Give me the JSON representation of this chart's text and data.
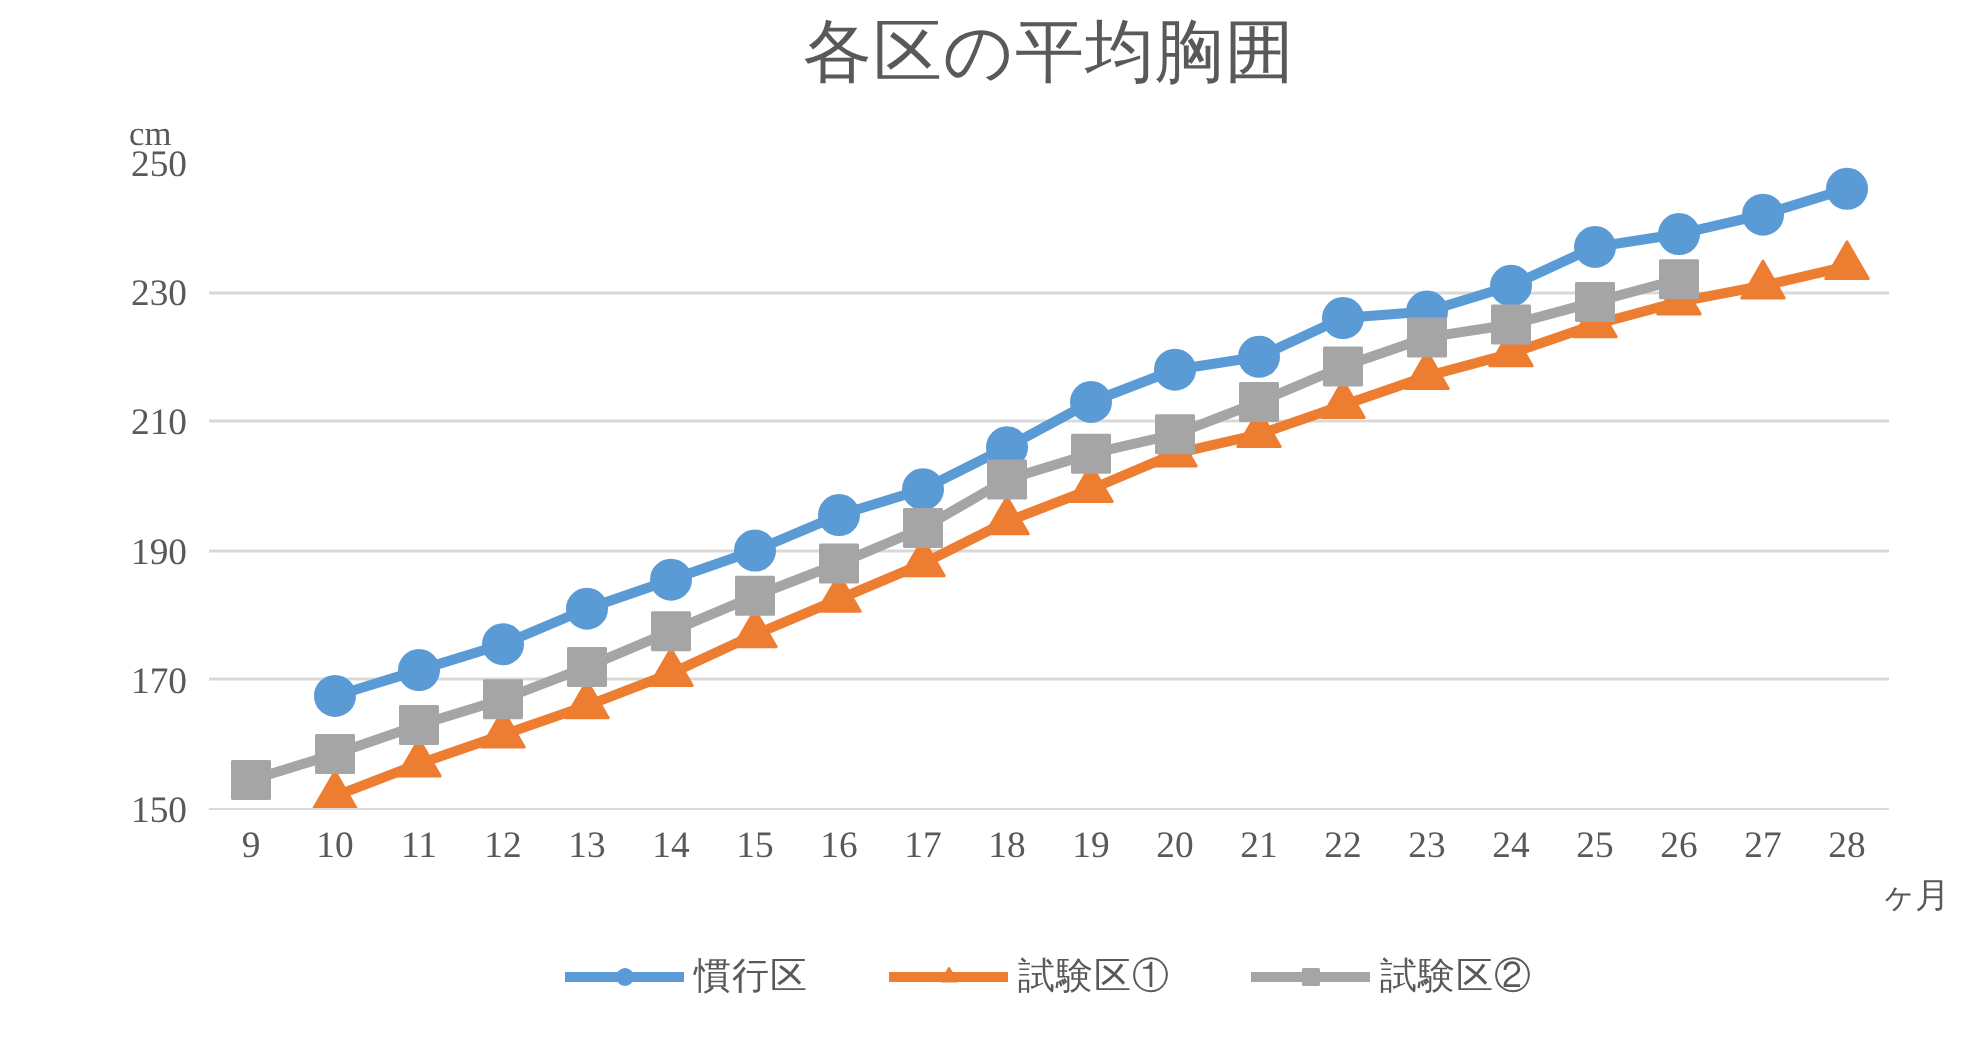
{
  "chart_data": {
    "type": "line",
    "title": "各区の平均胸囲",
    "ylabel": "cm",
    "xlabel": "ヶ月",
    "categories": [
      "9",
      "10",
      "11",
      "12",
      "13",
      "14",
      "15",
      "16",
      "17",
      "18",
      "19",
      "20",
      "21",
      "22",
      "23",
      "24",
      "25",
      "26",
      "27",
      "28"
    ],
    "series": [
      {
        "name": "慣行区",
        "color": "#5b9bd5",
        "marker": "circle",
        "values": [
          null,
          167.5,
          171.5,
          175.5,
          181,
          185.5,
          190,
          195.5,
          199.5,
          206,
          213,
          218,
          220,
          226,
          227,
          231,
          237,
          239,
          242,
          246
        ]
      },
      {
        "name": "試験区①",
        "color": "#ed7d31",
        "marker": "triangle",
        "values": [
          null,
          152,
          157,
          161.5,
          166,
          171,
          177,
          182.5,
          188,
          194.5,
          199.5,
          205,
          208,
          212.5,
          217,
          220.5,
          225,
          228.5,
          231,
          234
        ]
      },
      {
        "name": "試験区②",
        "color": "#a5a5a5",
        "marker": "square",
        "values": [
          154.5,
          158.5,
          163,
          167,
          172,
          177.5,
          183,
          188,
          193.5,
          201,
          205,
          208,
          213,
          218.5,
          223,
          225,
          228.5,
          232,
          null,
          null
        ]
      }
    ],
    "ylim": [
      150,
      250
    ],
    "yticks": [
      150,
      170,
      190,
      210,
      230,
      250
    ],
    "grid": "y",
    "legend": "bottom"
  }
}
